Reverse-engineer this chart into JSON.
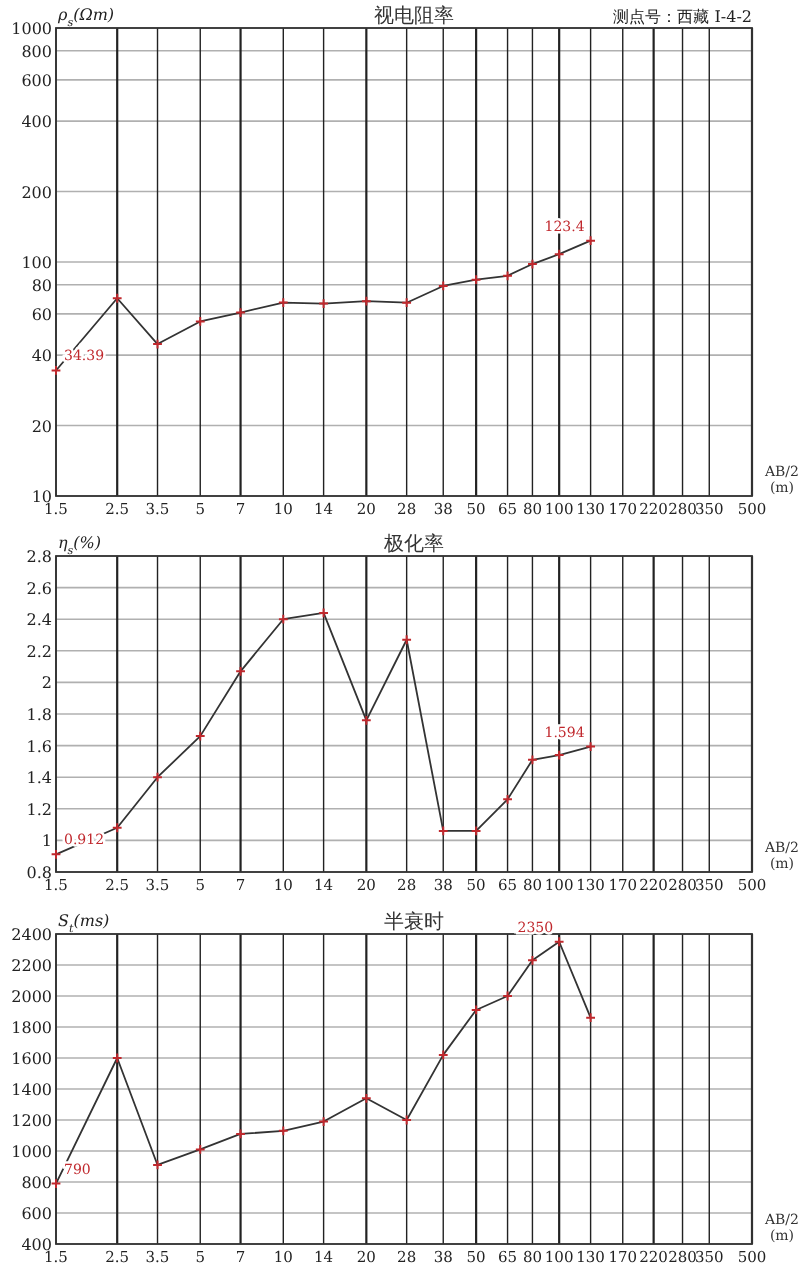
{
  "chart_data": [
    {
      "type": "line",
      "title": "视电阻率",
      "ylabel": "ρ$_{s}$(Ωm)",
      "xlabel": "AB/2 (m)",
      "annotations": [
        "测点号：西藏 I-4-2"
      ],
      "log": "xy",
      "xlim": [
        1.5,
        500
      ],
      "ylim": [
        10,
        1000
      ],
      "xticks": [
        1.5,
        2.5,
        3.5,
        5,
        7,
        10,
        14,
        20,
        28,
        38,
        50,
        65,
        80,
        100,
        130,
        170,
        220,
        280,
        350,
        500
      ],
      "yticks": [
        10,
        20,
        40,
        60,
        80,
        100,
        200,
        400,
        600,
        800,
        1000
      ],
      "grid": true,
      "marker": "cross",
      "x": [
        1.5,
        2.5,
        3.5,
        5,
        7,
        10,
        14,
        20,
        28,
        38,
        50,
        65,
        80,
        100,
        130
      ],
      "series": [
        {
          "color": "#333333",
          "values": [
            34.39,
            70,
            44.6,
            55.7,
            60.8,
            67.1,
            66.4,
            68,
            67,
            79,
            84,
            87.3,
            98,
            108,
            123.4
          ],
          "value_labels": [
            "34.39",
            null,
            null,
            null,
            null,
            null,
            null,
            null,
            null,
            null,
            null,
            null,
            null,
            null,
            "123.4"
          ]
        }
      ]
    },
    {
      "type": "line",
      "title": "极化率",
      "ylabel": "η$_{s}$(%)",
      "xlabel": "AB/2 (m)",
      "log": "x",
      "xlim": [
        1.5,
        500
      ],
      "ylim": [
        0.8,
        2.8
      ],
      "xticks": [
        1.5,
        2.5,
        3.5,
        5,
        7,
        10,
        14,
        20,
        28,
        38,
        50,
        65,
        80,
        100,
        130,
        170,
        220,
        280,
        350,
        500
      ],
      "yticks": [
        0.8,
        1,
        1.2,
        1.4,
        1.6,
        1.8,
        2,
        2.2,
        2.4,
        2.6,
        2.8
      ],
      "grid": true,
      "marker": "cross",
      "x": [
        1.5,
        2.5,
        3.5,
        5,
        7,
        10,
        14,
        20,
        28,
        38,
        50,
        65,
        80,
        100,
        130
      ],
      "series": [
        {
          "color": "#333333",
          "values": [
            0.912,
            1.08,
            1.4,
            1.66,
            2.07,
            2.4,
            2.44,
            1.76,
            2.27,
            1.06,
            1.06,
            1.26,
            1.51,
            1.54,
            1.594
          ],
          "value_labels": [
            "0.912",
            null,
            null,
            null,
            null,
            null,
            null,
            null,
            null,
            null,
            null,
            null,
            null,
            null,
            "1.594"
          ]
        }
      ]
    },
    {
      "type": "line",
      "title": "半衰时",
      "ylabel": "S$_{t}$(ms)",
      "xlabel": "AB/2 (m)",
      "log": "x",
      "xlim": [
        1.5,
        500
      ],
      "ylim": [
        400,
        2400
      ],
      "xticks": [
        1.5,
        2.5,
        3.5,
        5,
        7,
        10,
        14,
        20,
        28,
        38,
        50,
        65,
        80,
        100,
        130,
        170,
        220,
        280,
        350,
        500
      ],
      "yticks": [
        400,
        600,
        800,
        1000,
        1200,
        1400,
        1600,
        1800,
        2000,
        2200,
        2400
      ],
      "grid": true,
      "marker": "cross",
      "x": [
        1.5,
        2.5,
        3.5,
        5,
        7,
        10,
        14,
        20,
        28,
        38,
        50,
        65,
        80,
        100,
        130
      ],
      "series": [
        {
          "color": "#333333",
          "values": [
            790,
            1600,
            910,
            1010,
            1110,
            1130,
            1190,
            1340,
            1200,
            1620,
            1910,
            2000,
            2230,
            2350,
            1860
          ],
          "value_labels": [
            "790",
            null,
            null,
            null,
            null,
            null,
            null,
            null,
            null,
            null,
            null,
            null,
            null,
            "2350",
            null
          ]
        }
      ]
    }
  ]
}
